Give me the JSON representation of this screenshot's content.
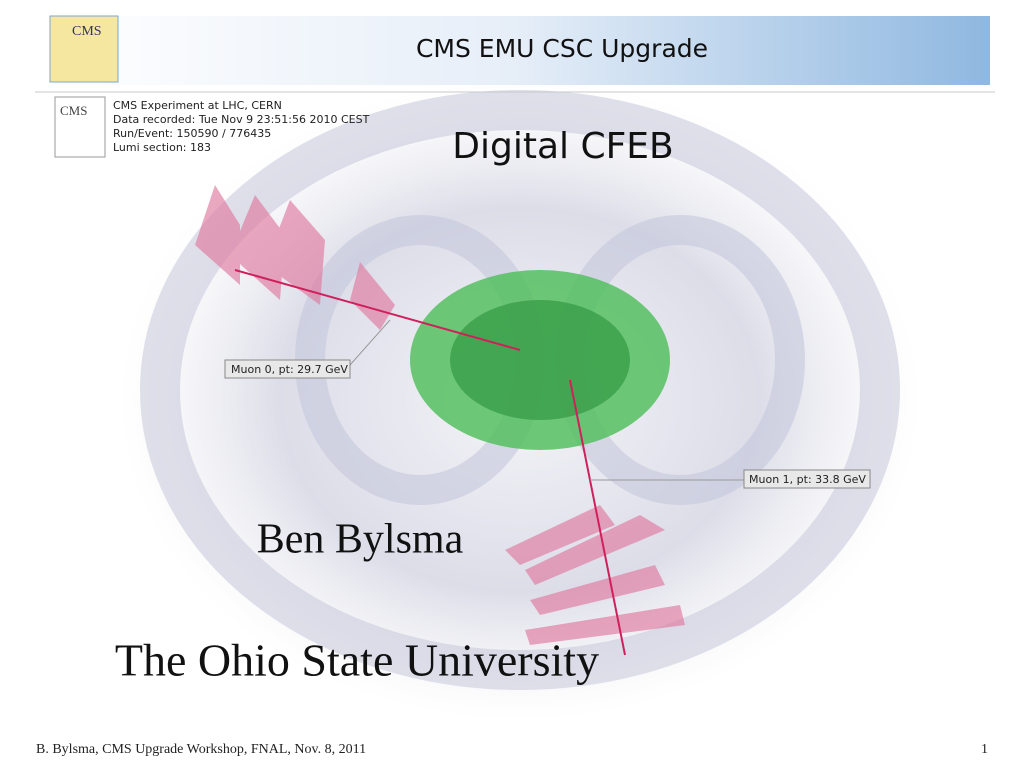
{
  "header": {
    "title": "CMS EMU CSC Upgrade",
    "logo": "CMS"
  },
  "event_info": {
    "logo": "CMS",
    "lines": [
      "CMS Experiment at LHC, CERN",
      "Data recorded: Tue Nov  9 23:51:56 2010 CEST",
      "Run/Event: 150590 / 776435",
      "Lumi section: 183"
    ]
  },
  "slide": {
    "title": "Digital CFEB",
    "author": "Ben Bylsma",
    "affiliation": "The Ohio State University"
  },
  "annotations": [
    "Muon 0, pt: 29.7 GeV",
    "Muon 1, pt: 33.8 GeV"
  ],
  "footer": {
    "text": "B. Bylsma, CMS Upgrade Workshop, FNAL, Nov. 8, 2011",
    "page": "1"
  }
}
